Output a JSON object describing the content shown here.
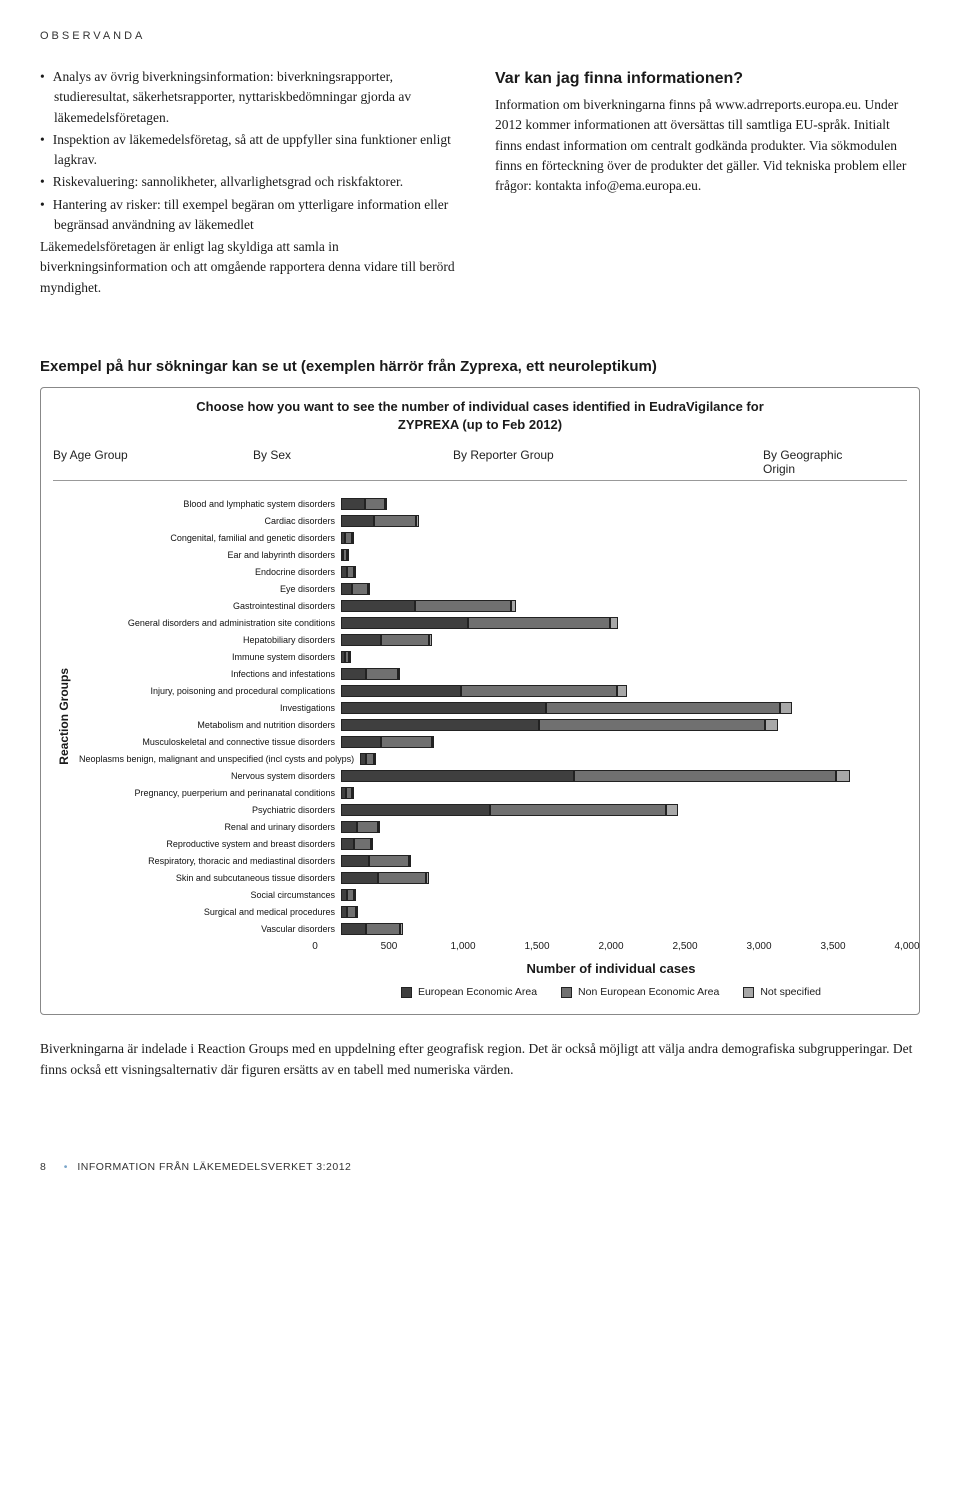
{
  "header": {
    "label": "OBSERVANDA"
  },
  "left_column": {
    "bullets": [
      "Analys av övrig biverkningsinformation: biverknings­rapporter, studieresultat, säkerhetsrapporter, nytta­riskbedömningar gjorda av läkemedelsföretagen.",
      "Inspektion av läkemedelsföretag, så att de uppfyller sina funktioner enligt lagkrav.",
      "Riskevaluering: sannolikheter, allvarlighetsgrad och riskfaktorer.",
      "Hantering av risker: till exempel begäran om ytterligare information eller begränsad användning av läkemedlet"
    ],
    "trailing": "Läkemedelsföretagen är enligt lag skyldiga att samla in biverkningsinformation och att omgående rapportera denna vidare till berörd myndighet."
  },
  "right_column": {
    "heading": "Var kan jag finna informationen?",
    "body": "Information om biverkningarna finns på www.adrreports.europa.eu. Under 2012 kommer informationen att översättas till samtliga EU-språk. Initialt finns endast information om centralt godkända produkter. Via sökmodulen finns en förteckning över de produkter det gäller. Vid tekniska problem eller frågor: kontakta info@ema.europa.eu."
  },
  "example": {
    "heading": "Exempel på hur sökningar kan se ut (exemplen härrör från Zyprexa, ett neuroleptikum)",
    "chart": {
      "type": "stacked-horizontal-bar",
      "title_line1": "Choose how you want to see the number of individual cases identified in EudraVigilance for",
      "title_line2": "ZYPREXA (up to Feb 2012)",
      "tabs": [
        "By Age Group",
        "By Sex",
        "By Reporter Group",
        "By Geographic Origin"
      ],
      "y_axis_label": "Reaction Groups",
      "x_axis_label": "Number of individual cases",
      "x_max": 4000,
      "x_ticks": [
        0,
        500,
        1000,
        1500,
        2000,
        2500,
        3000,
        3500,
        4000
      ],
      "x_tick_labels": [
        "0",
        "500",
        "1,000",
        "1,500",
        "2,000",
        "2,500",
        "3,000",
        "3,500",
        "4,000"
      ],
      "series_colors": [
        "#3f3f3f",
        "#707070",
        "#a8a8a8"
      ],
      "bar_border": "#222222",
      "background": "#ffffff",
      "legend": [
        "European Economic Area",
        "Non European Economic Area",
        "Not specified"
      ],
      "label_fontsize": 9,
      "axis_title_fontsize": 13,
      "categories": [
        {
          "label": "Blood and lymphatic system disorders",
          "values": [
            170,
            140,
            10
          ]
        },
        {
          "label": "Cardiac disorders",
          "values": [
            230,
            300,
            20
          ]
        },
        {
          "label": "Congenital, familial and genetic disorders",
          "values": [
            30,
            50,
            5
          ]
        },
        {
          "label": "Ear and labyrinth disorders",
          "values": [
            15,
            25,
            3
          ]
        },
        {
          "label": "Endocrine disorders",
          "values": [
            40,
            55,
            5
          ]
        },
        {
          "label": "Eye disorders",
          "values": [
            80,
            110,
            8
          ]
        },
        {
          "label": "Gastrointestinal disorders",
          "values": [
            520,
            680,
            40
          ]
        },
        {
          "label": "General disorders and administration site conditions",
          "values": [
            900,
            1000,
            60
          ]
        },
        {
          "label": "Hepatobiliary disorders",
          "values": [
            280,
            340,
            20
          ]
        },
        {
          "label": "Immune system disorders",
          "values": [
            25,
            35,
            5
          ]
        },
        {
          "label": "Infections and infestations",
          "values": [
            180,
            220,
            15
          ]
        },
        {
          "label": "Injury, poisoning and procedural complications",
          "values": [
            850,
            1100,
            70
          ]
        },
        {
          "label": "Investigations",
          "values": [
            1450,
            1650,
            90
          ]
        },
        {
          "label": "Metabolism and nutrition disorders",
          "values": [
            1400,
            1600,
            90
          ]
        },
        {
          "label": "Musculoskeletal and connective tissue disorders",
          "values": [
            280,
            360,
            20
          ]
        },
        {
          "label": "Neoplasms benign, malignant and unspecified (incl cysts and polyps)",
          "values": [
            45,
            55,
            5
          ]
        },
        {
          "label": "Nervous system disorders",
          "values": [
            1650,
            1850,
            100
          ]
        },
        {
          "label": "Pregnancy, puerperium and perinanatal conditions",
          "values": [
            35,
            45,
            5
          ]
        },
        {
          "label": "Psychiatric disorders",
          "values": [
            1050,
            1250,
            80
          ]
        },
        {
          "label": "Renal and urinary disorders",
          "values": [
            110,
            150,
            10
          ]
        },
        {
          "label": "Reproductive system and breast disorders",
          "values": [
            90,
            120,
            8
          ]
        },
        {
          "label": "Respiratory, thoracic and mediastinal disorders",
          "values": [
            200,
            280,
            15
          ]
        },
        {
          "label": "Skin and subcutaneous tissue disorders",
          "values": [
            260,
            340,
            20
          ]
        },
        {
          "label": "Social circumstances",
          "values": [
            40,
            55,
            5
          ]
        },
        {
          "label": "Surgical and medical procedures",
          "values": [
            45,
            60,
            5
          ]
        },
        {
          "label": "Vascular disorders",
          "values": [
            180,
            240,
            15
          ]
        }
      ]
    },
    "caption": "Biverkningarna är indelade i Reaction Groups med en uppdelning efter geografisk region. Det är också möjligt att välja andra demografiska subgrupperingar. Det finns också ett visningsalternativ där figuren ersätts av en tabell med numeriska värden."
  },
  "footer": {
    "page": "8",
    "text": "INFORMATION FRÅN LÄKEMEDELSVERKET 3:2012"
  }
}
